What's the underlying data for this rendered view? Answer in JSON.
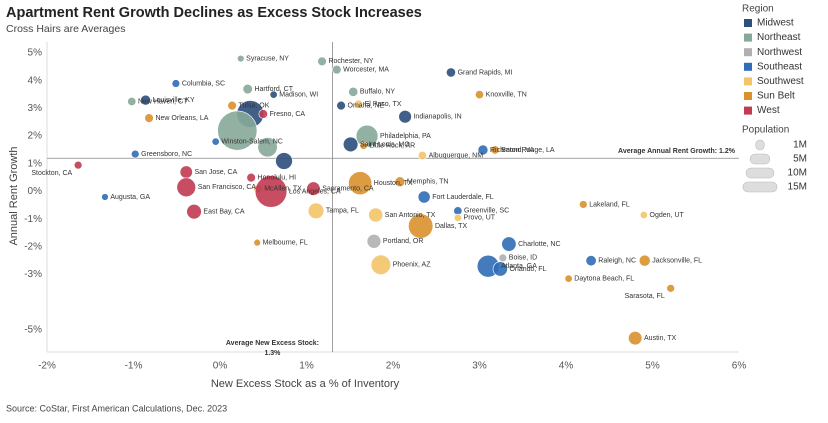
{
  "chart_data": {
    "type": "bubble",
    "title": "Apartment Rent Growth Declines as Excess Stock Increases",
    "subtitle": "Cross Hairs are Averages",
    "x_label": "New Excess Stock as a % of Inventory",
    "y_label": "Annual Rent Growth",
    "source": "Source: CoStar, First American Calculations, Dec. 2023",
    "xlim": [
      -2,
      6
    ],
    "ylim": [
      -5.8,
      5.4
    ],
    "xticks": [
      {
        "value": -2,
        "label": "-2%"
      },
      {
        "value": -1,
        "label": "-1%"
      },
      {
        "value": 0,
        "label": "0%"
      },
      {
        "value": 1,
        "label": "1%"
      },
      {
        "value": 2,
        "label": "2%"
      },
      {
        "value": 3,
        "label": "3%"
      },
      {
        "value": 4,
        "label": "4%"
      },
      {
        "value": 5,
        "label": "5%"
      },
      {
        "value": 6,
        "label": "6%"
      }
    ],
    "yticks": [
      {
        "value": 5,
        "label": "5%"
      },
      {
        "value": 4,
        "label": "4%"
      },
      {
        "value": 3,
        "label": "3%"
      },
      {
        "value": 2,
        "label": "2%"
      },
      {
        "value": 1,
        "label": "1%"
      },
      {
        "value": 0,
        "label": "0%"
      },
      {
        "value": -1,
        "label": "-1%"
      },
      {
        "value": -2,
        "label": "-2%"
      },
      {
        "value": -3,
        "label": "-3%"
      },
      {
        "value": -5,
        "label": "-5%"
      }
    ],
    "grid": false,
    "legend_title": "Region",
    "crosshair_y": {
      "value": 1.2,
      "label": "Average Annual Rent Growth: 1.2%"
    },
    "crosshair_x": {
      "value": 1.3,
      "label": [
        "Average New Excess Stock:",
        "1.3%"
      ]
    },
    "size_legend": {
      "title": "Population",
      "values": [
        1,
        5,
        10,
        15
      ],
      "labels": [
        "1M",
        "5M",
        "10M",
        "15M"
      ]
    },
    "series": [
      {
        "name": "Midwest",
        "color": "#2c4f7c",
        "labels": [
          "Grand Rapids, MI",
          "Louisville, KY",
          "Madison, WI",
          "Omaha, NE",
          "Indianapolis, IN",
          "Saint Louis, MO",
          null,
          null
        ],
        "x": [
          2.67,
          -0.86,
          0.62,
          1.4,
          2.14,
          1.51,
          0.35,
          0.74
        ],
        "y": [
          4.3,
          3.3,
          3.5,
          3.1,
          2.7,
          1.7,
          2.8,
          1.1
        ],
        "size": [
          1.1,
          1.3,
          0.7,
          1,
          2.1,
          2.8,
          9.4,
          3.7
        ]
      },
      {
        "name": "Northeast",
        "color": "#86a898",
        "labels": [
          "Rochester, NY",
          "Syracuse, NY",
          "Worcester, MA",
          "Hartford, CT",
          "New Haven, CT",
          "Buffalo, NY",
          "Philadelphia, PA",
          null,
          null
        ],
        "x": [
          1.18,
          0.24,
          1.35,
          0.32,
          -1.02,
          1.54,
          1.7,
          0.2,
          0.55
        ],
        "y": [
          4.7,
          4.8,
          4.4,
          3.7,
          3.25,
          3.6,
          2.0,
          2.2,
          1.6
        ],
        "size": [
          1,
          0.6,
          1,
          1.2,
          0.9,
          1.1,
          6.2,
          20,
          4.9
        ]
      },
      {
        "name": "Northwest",
        "color": "#b0b0b0",
        "labels": [
          "Portland, OR",
          "Boise, ID"
        ],
        "x": [
          1.78,
          3.27
        ],
        "y": [
          -1.8,
          -2.4
        ],
        "size": [
          2.5,
          0.8
        ]
      },
      {
        "name": "Southeast",
        "color": "#2f6db5",
        "labels": [
          "Columbia, SC",
          "Winston-Salem, NC",
          "Greensboro, NC",
          "Richmond, VA",
          "Fort Lauderdale, FL",
          "Augusta, GA",
          "Greenville, SC",
          "Charlotte, NC",
          "Atlanta, GA",
          "Orlando, FL",
          "Raleigh, NC"
        ],
        "x": [
          -0.51,
          -0.05,
          -0.98,
          3.04,
          2.36,
          -1.33,
          2.75,
          3.34,
          3.1,
          3.24,
          4.29
        ],
        "y": [
          3.9,
          1.8,
          1.35,
          1.5,
          -0.2,
          -0.2,
          -0.7,
          -1.9,
          -2.7,
          -2.8,
          -2.5
        ],
        "size": [
          0.8,
          0.7,
          0.8,
          1.3,
          1.9,
          0.6,
          0.9,
          2.7,
          6.2,
          2.7,
          1.4
        ]
      },
      {
        "name": "Southwest",
        "color": "#f3c46a",
        "labels": [
          "El Paso, TX",
          "Albuquerque, NM",
          "Tampa, FL",
          "Provo, UT",
          "Ogden, UT",
          "San Antonio, TX",
          "Phoenix, AZ"
        ],
        "x": [
          1.6,
          2.34,
          1.11,
          2.75,
          4.9,
          1.8,
          1.86
        ],
        "y": [
          3.15,
          1.3,
          -0.7,
          -0.95,
          -0.85,
          -0.85,
          -2.65
        ],
        "size": [
          0.9,
          0.9,
          3.2,
          0.7,
          0.7,
          2.6,
          5
        ]
      },
      {
        "name": "Sun Belt",
        "color": "#d9912e",
        "labels": [
          "Tulsa, OK",
          "Knoxville, TN",
          "New Orleans, LA",
          "Little Rock, AR",
          "Baton Rouge, LA",
          "Houston, TX",
          "McAllen, TX",
          "Memphis, TN",
          "Lakeland, FL",
          "Dallas, TX",
          "Melbourne, FL",
          "Jacksonville, FL",
          "Daytona Beach, FL",
          "Sarasota, FL",
          "Austin, TX"
        ],
        "x": [
          0.14,
          3.0,
          -0.82,
          1.66,
          3.18,
          1.62,
          0.44,
          2.08,
          4.2,
          2.32,
          0.43,
          4.91,
          4.03,
          5.21,
          4.8
        ],
        "y": [
          3.1,
          3.5,
          2.65,
          1.65,
          1.5,
          0.3,
          0.1,
          0.35,
          -0.47,
          -1.25,
          -1.85,
          -2.5,
          -3.15,
          -3.5,
          -5.3
        ],
        "size": [
          1,
          0.9,
          1,
          0.7,
          0.9,
          7,
          0.9,
          1.3,
          0.8,
          7.8,
          0.6,
          1.6,
          0.7,
          0.8,
          2.4
        ]
      },
      {
        "name": "West",
        "color": "#c13b51",
        "labels": [
          "Fresno, CA",
          "Stockton, CA",
          "San Jose, CA",
          "Honolulu, HI",
          "Sacramento, CA",
          "San Francisco, CA",
          "Los Angeles, CA",
          "East Bay, CA"
        ],
        "x": [
          0.5,
          -1.64,
          -0.39,
          0.36,
          1.08,
          -0.39,
          0.59,
          -0.3
        ],
        "y": [
          2.8,
          0.95,
          0.7,
          0.5,
          0.1,
          0.15,
          0.0,
          -0.73
        ],
        "size": [
          1,
          0.8,
          2,
          1,
          2.4,
          4.6,
          13,
          2.8
        ]
      }
    ]
  }
}
